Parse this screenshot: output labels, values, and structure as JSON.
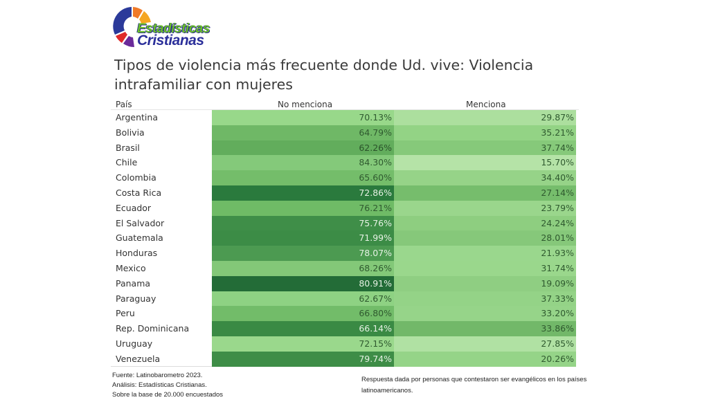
{
  "logo": {
    "line1": "Estadísticas",
    "line2": "Cristianas"
  },
  "header": {
    "title": "Tipos de violencia más frecuente donde Ud. vive: Violencia intrafamiliar con mujeres"
  },
  "table": {
    "columns": [
      "País",
      "No menciona",
      "Menciona"
    ]
  },
  "chart_data": {
    "type": "table",
    "title": "Tipos de violencia más frecuente donde Ud. vive: Violencia intrafamiliar con mujeres",
    "columns": [
      "País",
      "No menciona",
      "Menciona"
    ],
    "rows": [
      {
        "country": "Argentina",
        "no": "70.13%",
        "si": "29.87%",
        "no_color": "#98d88a",
        "si_color": "#acdf9e",
        "no_text": "#2f5a2f",
        "si_text": "#2f5a2f"
      },
      {
        "country": "Bolivia",
        "no": "64.79%",
        "si": "35.21%",
        "no_color": "#6fb866",
        "si_color": "#93d385",
        "no_text": "#2f5a2f",
        "si_text": "#2f5a2f"
      },
      {
        "country": "Brasil",
        "no": "62.26%",
        "si": "37.74%",
        "no_color": "#62ad5c",
        "si_color": "#86c97a",
        "no_text": "#2a522a",
        "si_text": "#2f5a2f"
      },
      {
        "country": "Chile",
        "no": "84.30%",
        "si": "15.70%",
        "no_color": "#84c97a",
        "si_color": "#b5e3a7",
        "no_text": "#2f5a2f",
        "si_text": "#2f5a2f"
      },
      {
        "country": "Colombia",
        "no": "65.60%",
        "si": "34.40%",
        "no_color": "#74bd6a",
        "si_color": "#96d388",
        "no_text": "#2f5a2f",
        "si_text": "#2f5a2f"
      },
      {
        "country": "Costa Rica",
        "no": "72.86%",
        "si": "27.14%",
        "no_color": "#2a7a3d",
        "si_color": "#76bd6c",
        "no_text": "#e6f2e4",
        "si_text": "#2f5a2f"
      },
      {
        "country": "Ecuador",
        "no": "76.21%",
        "si": "23.79%",
        "no_color": "#6fbb66",
        "si_color": "#9ad68c",
        "no_text": "#2f5a2f",
        "si_text": "#2f5a2f"
      },
      {
        "country": "El Salvador",
        "no": "75.76%",
        "si": "24.24%",
        "no_color": "#3f8e48",
        "si_color": "#8ece80",
        "no_text": "#e6f2e4",
        "si_text": "#2f5a2f"
      },
      {
        "country": "Guatemala",
        "no": "71.99%",
        "si": "28.01%",
        "no_color": "#3c8c46",
        "si_color": "#86c87a",
        "no_text": "#e6f2e4",
        "si_text": "#2f5a2f"
      },
      {
        "country": "Honduras",
        "no": "78.07%",
        "si": "21.93%",
        "no_color": "#4c9a51",
        "si_color": "#9ad78d",
        "no_text": "#e6f2e4",
        "si_text": "#2f5a2f"
      },
      {
        "country": "Mexico",
        "no": "68.26%",
        "si": "31.74%",
        "no_color": "#83c878",
        "si_color": "#9ad78c",
        "no_text": "#2f5a2f",
        "si_text": "#2f5a2f"
      },
      {
        "country": "Panama",
        "no": "80.91%",
        "si": "19.09%",
        "no_color": "#236c37",
        "si_color": "#8fce82",
        "no_text": "#e6f2e4",
        "si_text": "#2f5a2f"
      },
      {
        "country": "Paraguay",
        "no": "62.67%",
        "si": "37.33%",
        "no_color": "#8ed283",
        "si_color": "#94d387",
        "no_text": "#2f5a2f",
        "si_text": "#2f5a2f"
      },
      {
        "country": "Peru",
        "no": "66.80%",
        "si": "33.20%",
        "no_color": "#72bc69",
        "si_color": "#96d489",
        "no_text": "#2f5a2f",
        "si_text": "#2f5a2f"
      },
      {
        "country": "Rep. Dominicana",
        "no": "66.14%",
        "si": "33.86%",
        "no_color": "#3a8a44",
        "si_color": "#72b869",
        "no_text": "#e6f2e4",
        "si_text": "#2f5a2f"
      },
      {
        "country": "Uruguay",
        "no": "72.15%",
        "si": "27.85%",
        "no_color": "#9ad88c",
        "si_color": "#b0e1a3",
        "no_text": "#2f5a2f",
        "si_text": "#2f5a2f"
      },
      {
        "country": "Venezuela",
        "no": "79.74%",
        "si": "20.26%",
        "no_color": "#3e8d47",
        "si_color": "#95d488",
        "no_text": "#e6f2e4",
        "si_text": "#2f5a2f"
      }
    ]
  },
  "footer": {
    "source": "Fuente: Latinobarometro 2023.",
    "analysis": "Análisis: Estadísticas Cristianas.",
    "base": "Sobre la base de 20.000 encuestados",
    "note": "Respuesta dada por personas que contestaron ser evangélicos en los países latinoamericanos."
  }
}
